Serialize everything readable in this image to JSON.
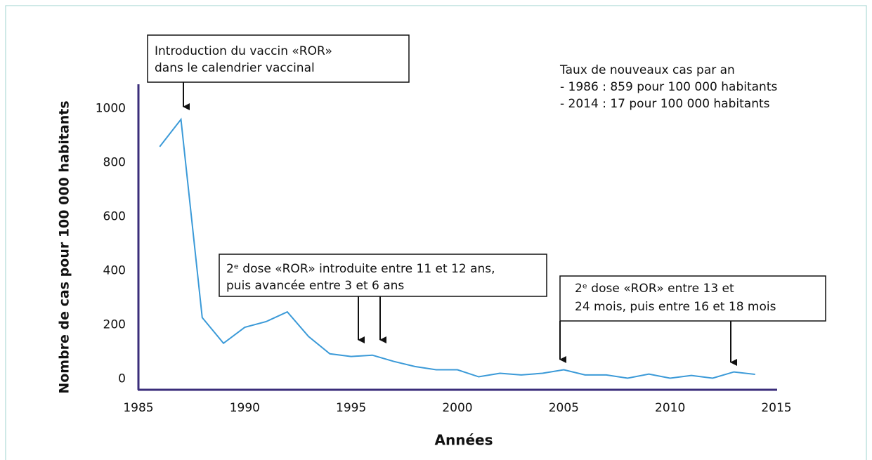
{
  "chart_data": {
    "type": "line",
    "xlabel": "Années",
    "ylabel": "Nombre de cas pour 100 000 habitants",
    "x": [
      1986,
      1987,
      1988,
      1989,
      1990,
      1991,
      1992,
      1993,
      1994,
      1995,
      1996,
      1997,
      1998,
      1999,
      2000,
      2001,
      2002,
      2003,
      2004,
      2005,
      2006,
      2007,
      2008,
      2009,
      2010,
      2011,
      2012,
      2013,
      2014
    ],
    "series": [
      {
        "name": null,
        "color": "#3b9ad8",
        "values": [
          859,
          960,
          227,
          132,
          191,
          212,
          248,
          157,
          93,
          83,
          88,
          65,
          46,
          34,
          34,
          8,
          21,
          15,
          21,
          34,
          15,
          15,
          3,
          18,
          3,
          13,
          3,
          26,
          17
        ]
      }
    ],
    "xlim": [
      1985,
      2015
    ],
    "xticks": [
      1985,
      1990,
      1995,
      2000,
      2005,
      2010,
      2015
    ],
    "ylim": [
      -40,
      1090
    ],
    "yticks": [
      0,
      200,
      400,
      600,
      800,
      1000
    ],
    "grid": false,
    "annotations": [
      {
        "lines": [
          "Introduction du vaccin «ROR»",
          "dans le calendrier vaccinal"
        ]
      },
      {
        "lines": [
          "2ᵉ dose «ROR» introduite entre 11 et 12 ans,",
          "puis avancée entre 3 et 6 ans"
        ]
      },
      {
        "lines": [
          "2ᵉ dose «ROR» entre 13 et",
          "24 mois, puis entre 16 et 18 mois"
        ]
      }
    ],
    "note": [
      "Taux de nouveaux cas par an",
      "- 1986 : 859 pour 100 000 habitants",
      "- 2014 : 17 pour 100 000 habitants"
    ]
  }
}
